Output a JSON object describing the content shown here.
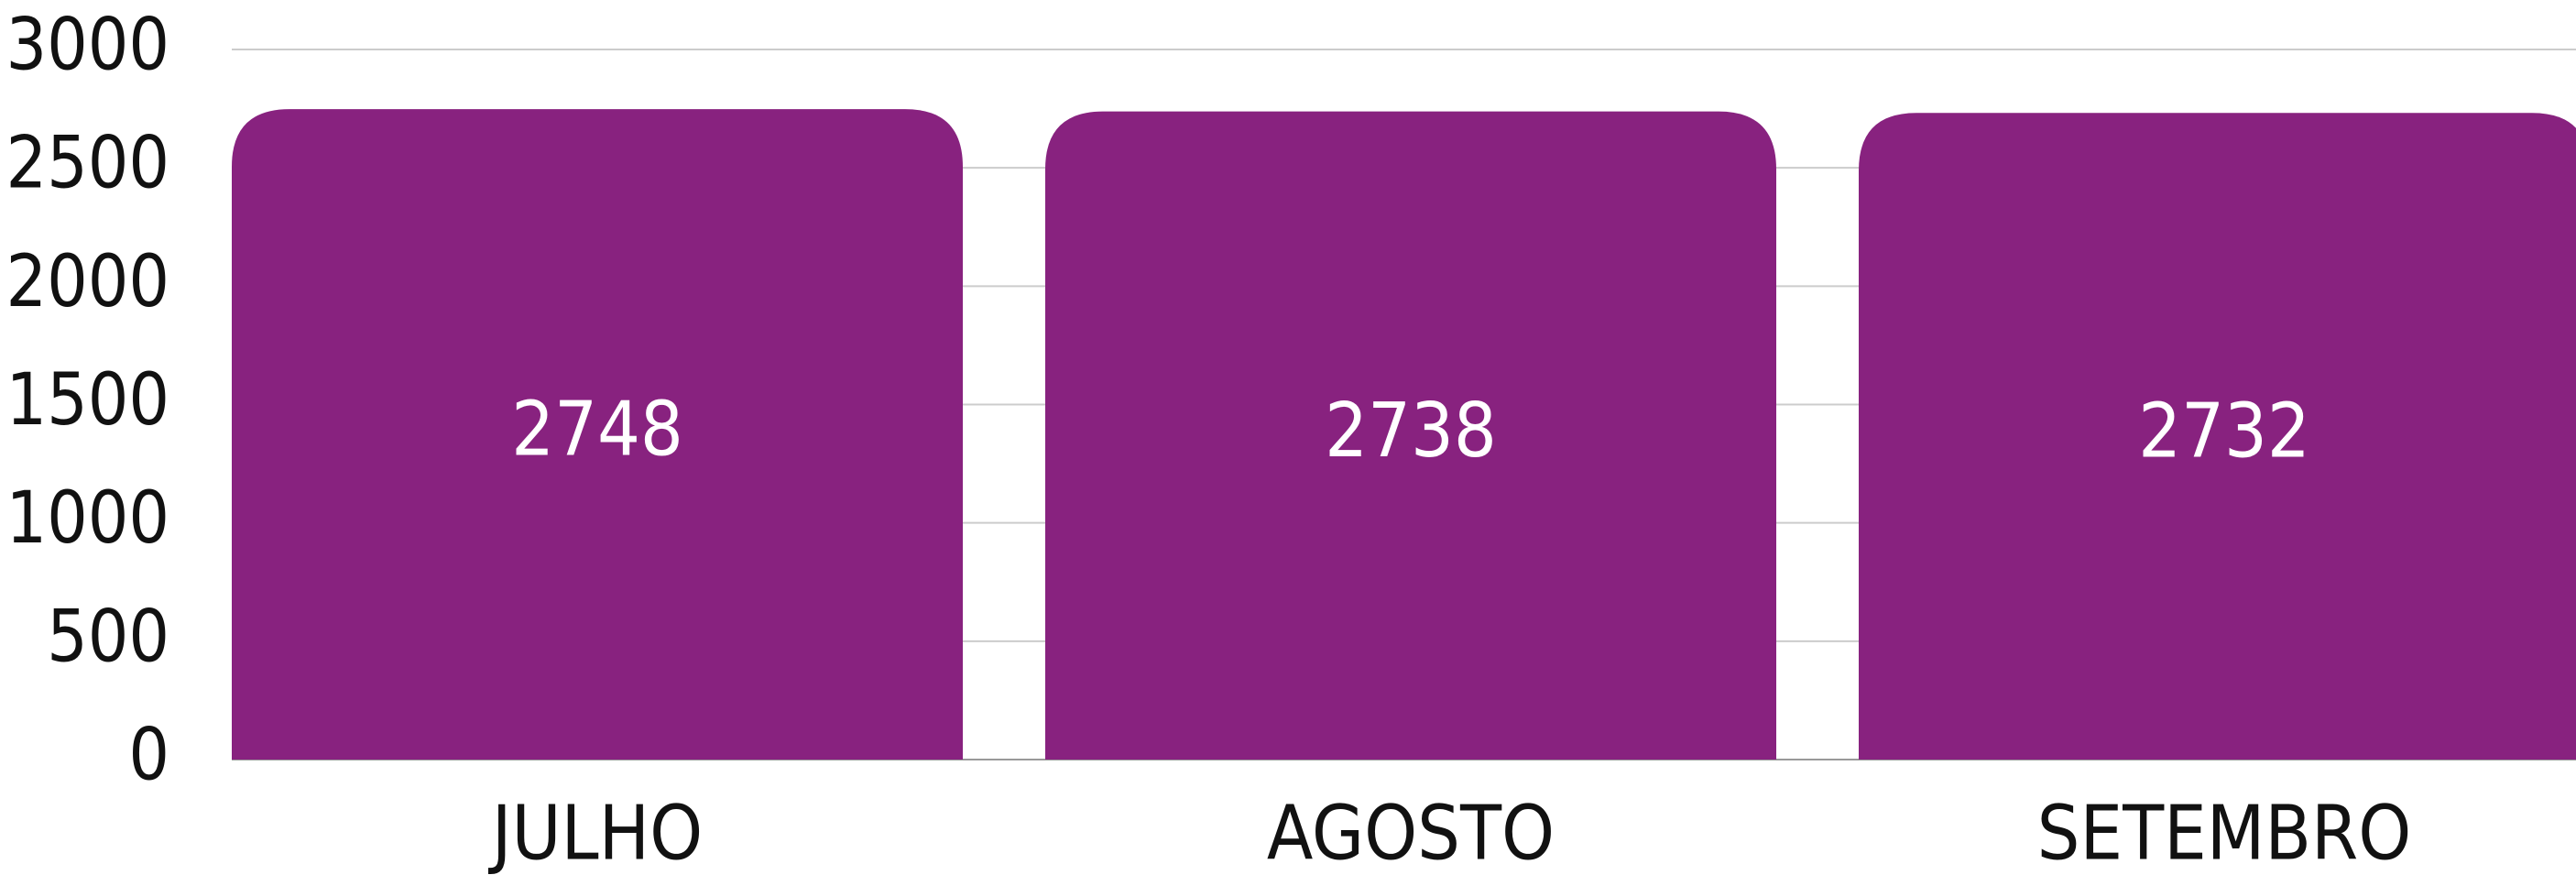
{
  "chart_data": {
    "type": "bar",
    "categories": [
      "JULHO",
      "AGOSTO",
      "SETEMBRO"
    ],
    "values": [
      2748,
      2738,
      2732
    ],
    "color": "#88227f",
    "ylim": [
      0,
      3000
    ],
    "yticks": [
      0,
      500,
      1000,
      1500,
      2000,
      2500,
      3000
    ],
    "grid": true
  }
}
